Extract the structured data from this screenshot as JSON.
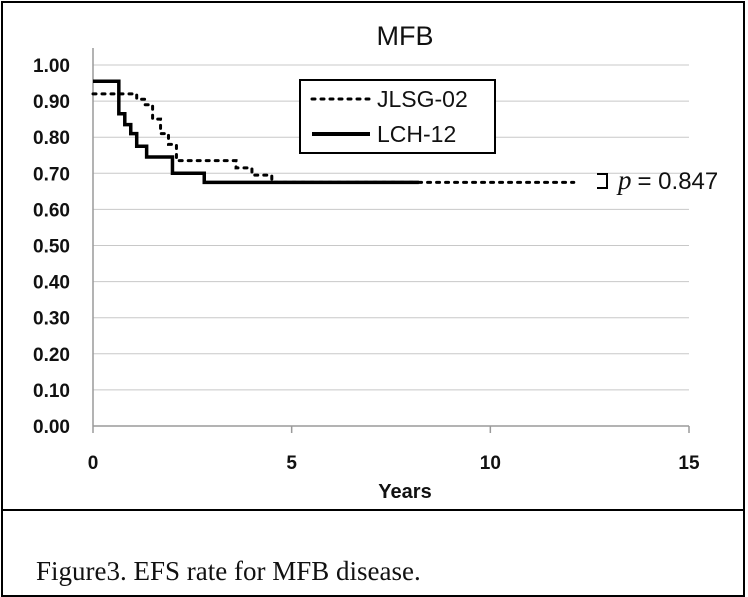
{
  "chart_data": {
    "type": "line",
    "title": "MFB",
    "xlabel": "Years",
    "ylabel": "",
    "xlim": [
      0,
      15
    ],
    "ylim": [
      0,
      1
    ],
    "x_ticks": [
      "0",
      "5",
      "10",
      "15"
    ],
    "y_ticks": [
      "0.00",
      "0.10",
      "0.20",
      "0.30",
      "0.40",
      "0.50",
      "0.60",
      "0.70",
      "0.80",
      "0.90",
      "1.00"
    ],
    "grid": true,
    "legend_position": "top-center",
    "series": [
      {
        "name": "JLSG-02",
        "style": "dotted",
        "x": [
          0,
          0.9,
          1.1,
          1.3,
          1.5,
          1.7,
          1.9,
          2.1,
          3.2,
          3.6,
          4.0,
          4.5,
          12.1
        ],
        "y": [
          0.92,
          0.92,
          0.905,
          0.89,
          0.85,
          0.81,
          0.78,
          0.735,
          0.735,
          0.715,
          0.695,
          0.675,
          0.675
        ]
      },
      {
        "name": "LCH-12",
        "style": "solid",
        "x": [
          0,
          0.55,
          0.65,
          0.8,
          0.95,
          1.1,
          1.35,
          1.85,
          2.0,
          2.7,
          2.8,
          8.2
        ],
        "y": [
          0.955,
          0.955,
          0.865,
          0.835,
          0.81,
          0.775,
          0.745,
          0.745,
          0.7,
          0.7,
          0.675,
          0.675
        ]
      }
    ],
    "annotation": {
      "p_symbol": "p",
      "p_text": "= 0.847"
    }
  },
  "caption": "Figure3. EFS rate for MFB disease.",
  "colors": {
    "line": "#000000",
    "grid": "#c8c8c8",
    "axis": "#9a9a9a"
  }
}
